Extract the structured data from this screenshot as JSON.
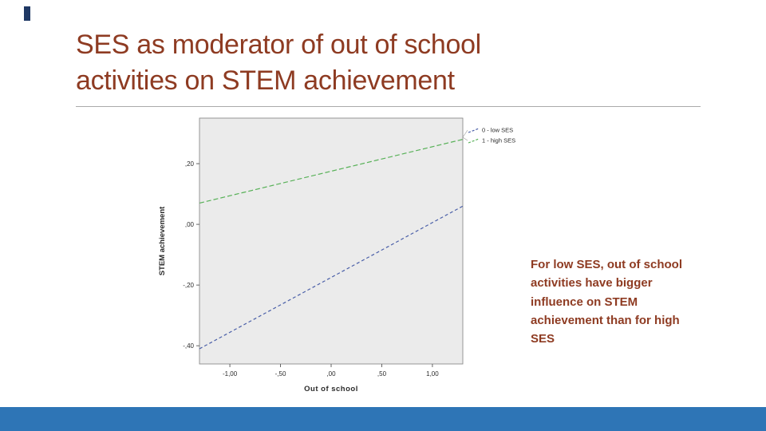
{
  "slide": {
    "title_lines": [
      "SES as moderator of out of school",
      "activities on STEM achievement"
    ],
    "annotation": "For low SES, out of school activities have bigger influence on STEM achievement than for high SES",
    "colors": {
      "title": "#8e3b22",
      "annotation": "#8e3b22",
      "bottom_bar": "#2e75b6",
      "accent_mark": "#1f3864",
      "divider": "#aaaaaa"
    }
  },
  "chart_data": {
    "type": "line",
    "title": "",
    "xlabel": "Out of school",
    "ylabel": "STEM achievement",
    "xlim": [
      -1.3,
      1.3
    ],
    "ylim": [
      -0.46,
      0.35
    ],
    "x_tick_labels": [
      "-1,00",
      "-,50",
      ",00",
      ",50",
      "1,00"
    ],
    "x_tick_values": [
      -1.0,
      -0.5,
      0.0,
      0.5,
      1.0
    ],
    "y_tick_labels": [
      ",20",
      ",00",
      "-,20",
      "-,40"
    ],
    "y_tick_values": [
      0.2,
      0.0,
      -0.2,
      -0.4
    ],
    "plot_background": "#ebebeb",
    "frame_color": "#8c8c8c",
    "tick_color": "#555555",
    "label_color": "#2b2b2b",
    "grid": false,
    "legend_position": "top-right-outside",
    "legend": [
      {
        "label": "0 - low SES",
        "color": "#4a5fa8"
      },
      {
        "label": "1 - high SES",
        "color": "#58b158"
      }
    ],
    "series": [
      {
        "name": "0 - low SES",
        "color": "#4a5fa8",
        "dash": "4,3",
        "x": [
          -1.3,
          1.3
        ],
        "values": [
          -0.41,
          0.06
        ]
      },
      {
        "name": "1 - high SES",
        "color": "#58b158",
        "dash": "6,3",
        "x": [
          -1.3,
          1.3
        ],
        "values": [
          0.07,
          0.28
        ]
      }
    ]
  }
}
